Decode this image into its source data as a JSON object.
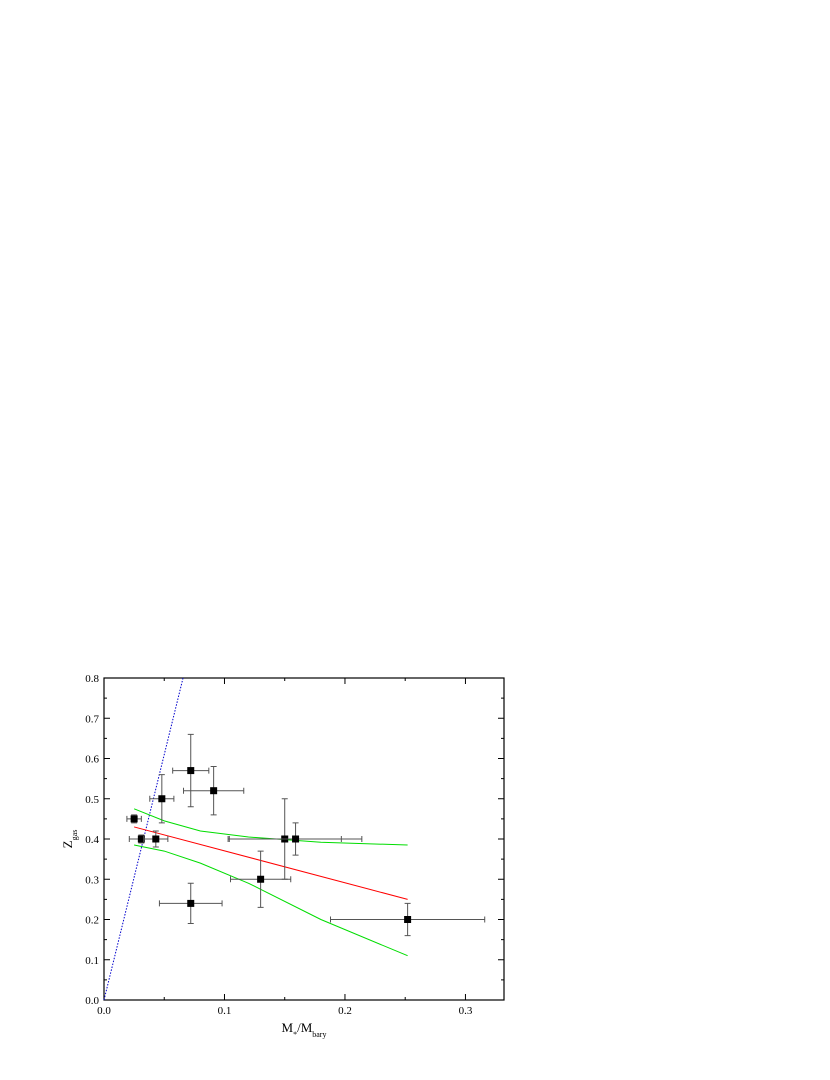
{
  "chart_data": {
    "type": "scatter",
    "xlabel": [
      {
        "text": "M"
      },
      {
        "sub": "*"
      },
      {
        "text": "/M"
      },
      {
        "sub": "bary"
      }
    ],
    "ylabel": [
      {
        "text": "Z"
      },
      {
        "sub": "gas"
      }
    ],
    "xlim": [
      0,
      0.332
    ],
    "ylim": [
      0,
      0.8
    ],
    "xticks": [
      {
        "value": 0,
        "label": "0.0"
      },
      0.1,
      0.2,
      0.3
    ],
    "yticks": [
      {
        "value": 0,
        "label": "0.0"
      },
      0.1,
      0.2,
      0.3,
      0.4,
      0.5,
      0.6,
      0.7,
      0.8
    ],
    "points": {
      "color": "#000000",
      "errcolor": "#555555",
      "x": [
        0.025,
        0.031,
        0.043,
        0.048,
        0.072,
        0.091,
        0.072,
        0.13,
        0.15,
        0.159,
        0.252
      ],
      "values": [
        0.45,
        0.4,
        0.4,
        0.5,
        0.57,
        0.52,
        0.24,
        0.3,
        0.4,
        0.4,
        0.2
      ],
      "xerr": [
        0.006,
        0.01,
        0.01,
        0.01,
        0.015,
        0.025,
        0.026,
        0.025,
        0.047,
        0.055,
        0.064
      ],
      "yerr": [
        0.01,
        0.01,
        0.02,
        0.06,
        0.09,
        0.06,
        0.05,
        0.07,
        0.1,
        0.04,
        0.04
      ]
    },
    "lines": [
      {
        "color": "#0000cc",
        "dash": true,
        "x": [
          0,
          0.0656
        ],
        "values": [
          0,
          0.8
        ]
      },
      {
        "color": "#ff0000",
        "dash": false,
        "x": [
          0.025,
          0.252
        ],
        "values": [
          0.43,
          0.25
        ]
      },
      {
        "color": "#00dd00",
        "dash": false,
        "x": [
          0.025,
          0.05,
          0.08,
          0.12,
          0.18,
          0.252
        ],
        "values": [
          0.475,
          0.445,
          0.42,
          0.405,
          0.392,
          0.385
        ]
      },
      {
        "color": "#00dd00",
        "dash": false,
        "x": [
          0.025,
          0.05,
          0.08,
          0.12,
          0.18,
          0.252
        ],
        "values": [
          0.385,
          0.37,
          0.34,
          0.29,
          0.2,
          0.11
        ]
      }
    ]
  }
}
